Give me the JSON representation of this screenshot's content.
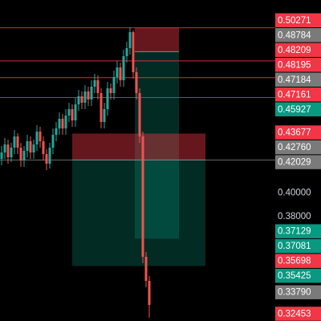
{
  "chart_data": {
    "type": "candlestick",
    "ylim": [
      0.32,
      0.52
    ],
    "up_color": "#26a69a",
    "down_color": "#ef5350",
    "open": [
      0.421,
      0.425,
      0.43,
      0.422,
      0.428,
      0.435,
      0.428,
      0.42,
      0.426,
      0.432,
      0.425,
      0.43,
      0.438,
      0.432,
      0.424,
      0.418,
      0.428,
      0.436,
      0.44,
      0.446,
      0.44,
      0.448,
      0.452,
      0.445,
      0.455,
      0.46,
      0.456,
      0.463,
      0.458,
      0.466,
      0.47,
      0.462,
      0.444,
      0.452,
      0.465,
      0.462,
      0.472,
      0.478,
      0.47,
      0.485,
      0.49,
      0.5,
      0.475,
      0.462,
      0.435,
      0.36,
      0.345
    ],
    "close": [
      0.425,
      0.43,
      0.422,
      0.428,
      0.435,
      0.428,
      0.42,
      0.426,
      0.432,
      0.425,
      0.43,
      0.438,
      0.432,
      0.424,
      0.418,
      0.428,
      0.436,
      0.44,
      0.446,
      0.44,
      0.448,
      0.452,
      0.445,
      0.455,
      0.46,
      0.456,
      0.463,
      0.458,
      0.466,
      0.47,
      0.462,
      0.444,
      0.452,
      0.465,
      0.462,
      0.472,
      0.478,
      0.47,
      0.485,
      0.49,
      0.5,
      0.475,
      0.462,
      0.435,
      0.36,
      0.345,
      0.33
    ],
    "high": [
      0.429,
      0.434,
      0.433,
      0.431,
      0.439,
      0.437,
      0.431,
      0.429,
      0.436,
      0.435,
      0.433,
      0.442,
      0.441,
      0.435,
      0.427,
      0.431,
      0.44,
      0.444,
      0.45,
      0.449,
      0.452,
      0.456,
      0.455,
      0.459,
      0.464,
      0.463,
      0.467,
      0.466,
      0.47,
      0.474,
      0.473,
      0.465,
      0.456,
      0.469,
      0.468,
      0.476,
      0.482,
      0.481,
      0.489,
      0.494,
      0.503,
      0.501,
      0.478,
      0.465,
      0.438,
      0.363,
      0.348
    ],
    "low": [
      0.417,
      0.421,
      0.418,
      0.419,
      0.424,
      0.424,
      0.416,
      0.416,
      0.422,
      0.421,
      0.421,
      0.426,
      0.428,
      0.42,
      0.414,
      0.415,
      0.424,
      0.432,
      0.436,
      0.436,
      0.436,
      0.444,
      0.441,
      0.441,
      0.451,
      0.452,
      0.452,
      0.454,
      0.454,
      0.462,
      0.458,
      0.44,
      0.44,
      0.448,
      0.458,
      0.458,
      0.468,
      0.466,
      0.466,
      0.481,
      0.486,
      0.471,
      0.458,
      0.431,
      0.356,
      0.341,
      0.322
    ],
    "positions": [
      {
        "entry": 0.48784,
        "stop": 0.50271,
        "target": 0.37129
      },
      {
        "entry": 0.42029,
        "stop": 0.43677,
        "target": 0.35425
      }
    ],
    "price_labels": [
      {
        "value": 0.50271,
        "color": "#f23645",
        "line": true
      },
      {
        "value": 0.48784,
        "color": "#7a7a7a"
      },
      {
        "value": 0.48209,
        "color": "#f23645",
        "line": true
      },
      {
        "value": 0.48195,
        "color": "#f23645"
      },
      {
        "value": 0.47184,
        "color": "#7a7a7a"
      },
      {
        "value": 0.47161,
        "color": "#f23645",
        "line": true
      },
      {
        "value": 0.45927,
        "color": "#089981",
        "line": true
      },
      {
        "value": 0.43677,
        "color": "#f23645"
      },
      {
        "value": 0.4276,
        "label": "0.42760",
        "color": "#7a7a7a"
      },
      {
        "value": 0.42029,
        "color": "#7a7a7a",
        "line": true
      },
      {
        "value": 0.4,
        "label": "0.40000"
      },
      {
        "value": 0.38,
        "label": "0.38000"
      },
      {
        "value": 0.37129,
        "color": "#089981"
      },
      {
        "value": 0.37081,
        "color": "#089981"
      },
      {
        "value": 0.35698,
        "color": "#f23645"
      },
      {
        "value": 0.35425,
        "color": "#089981"
      },
      {
        "value": 0.3379,
        "label": "0.33790",
        "color": "#7a7a7a"
      },
      {
        "value": 0.32453,
        "color": "#f23645"
      }
    ]
  }
}
